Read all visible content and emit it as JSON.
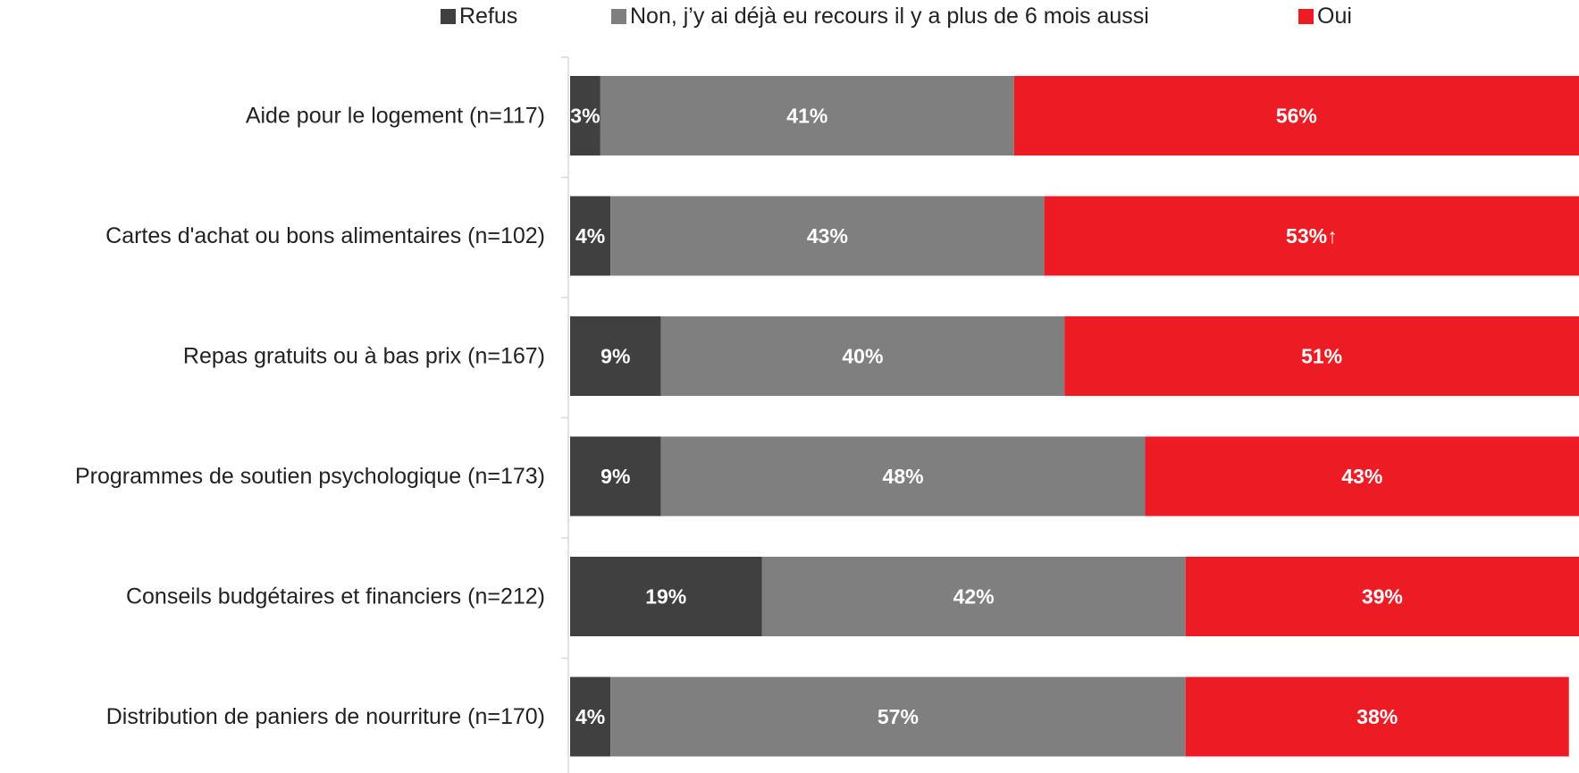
{
  "chart_data": {
    "type": "bar",
    "orientation": "horizontal",
    "stacked": true,
    "legend_position": "top",
    "grid": false,
    "xlim": [
      0,
      100
    ],
    "categories": [
      "Aide pour le logement (n=117)",
      "Cartes d'achat ou bons alimentaires (n=102)",
      "Repas gratuits ou à bas prix (n=167)",
      "Programmes de soutien psychologique (n=173)",
      "Conseils budgétaires et financiers (n=212)",
      "Distribution de paniers de nourriture (n=170)"
    ],
    "series": [
      {
        "name": "Refus",
        "color": "#404040",
        "values": [
          3,
          4,
          9,
          9,
          19,
          4
        ],
        "labels": [
          "3%",
          "4%",
          "9%",
          "9%",
          "19%",
          "4%"
        ]
      },
      {
        "name": "Non, j’y ai déjà eu recours il y a plus de 6 mois aussi",
        "color": "#7f7f7f",
        "values": [
          41,
          43,
          40,
          48,
          42,
          57
        ],
        "labels": [
          "41%",
          "43%",
          "40%",
          "48%",
          "42%",
          "57%"
        ]
      },
      {
        "name": "Oui",
        "color": "#ed1c24",
        "values": [
          56,
          53,
          51,
          43,
          39,
          38
        ],
        "labels": [
          "56%",
          "53%↑",
          "51%",
          "43%",
          "39%",
          "38%"
        ]
      }
    ]
  }
}
